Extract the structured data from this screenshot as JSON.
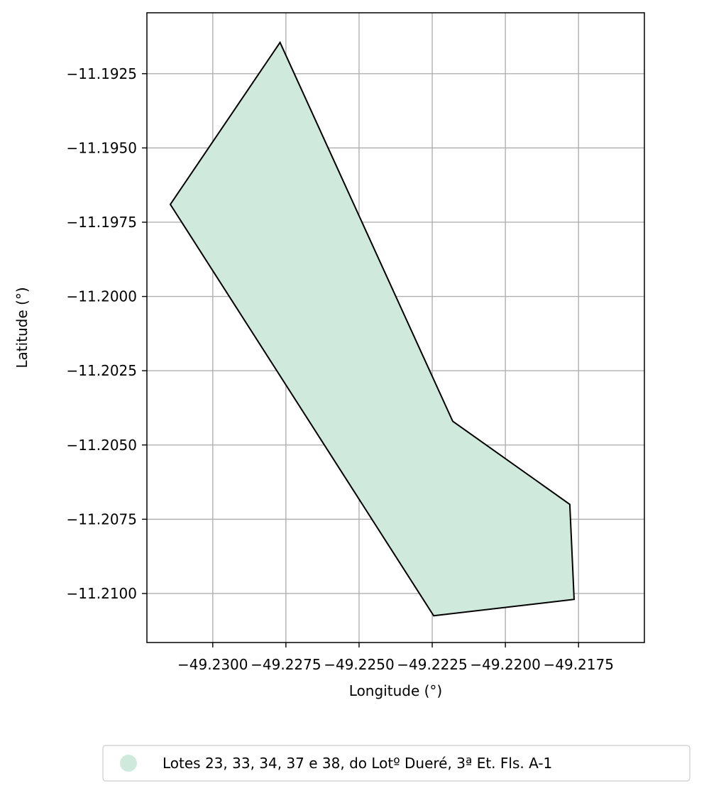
{
  "chart_data": {
    "type": "map-polygon",
    "title": "",
    "xlabel": "Longitude (°)",
    "ylabel": "Latitude (°)",
    "xlim": [
      -49.23225,
      -49.21525
    ],
    "ylim": [
      -11.21165,
      -11.19045
    ],
    "xticks": [
      -49.23,
      -49.2275,
      -49.225,
      -49.2225,
      -49.22,
      -49.2175
    ],
    "xtick_labels": [
      "−49.2300",
      "−49.2275",
      "−49.2250",
      "−49.2225",
      "−49.2200",
      "−49.2175"
    ],
    "yticks": [
      -11.1925,
      -11.195,
      -11.1975,
      -11.2,
      -11.2025,
      -11.205,
      -11.2075,
      -11.21
    ],
    "ytick_labels": [
      "−11.1925",
      "−11.1950",
      "−11.1975",
      "−11.2000",
      "−11.2025",
      "−11.2050",
      "−11.2075",
      "−11.2100"
    ],
    "grid": true,
    "legend_position": "bottom-right, below plot",
    "series": [
      {
        "name": "Lotes 23, 33, 34, 37 e 38, do Lotº Dueré, 3ª Et. Fls. A-1",
        "fill_color": "#cfeadd",
        "edge_color": "#000000",
        "polygon": [
          [
            -49.2277,
            -11.19145
          ],
          [
            -49.2218,
            -11.2042
          ],
          [
            -49.2178,
            -11.207
          ],
          [
            -49.21765,
            -11.2102
          ],
          [
            -49.22245,
            -11.21075
          ],
          [
            -49.23145,
            -11.1969
          ]
        ]
      }
    ]
  }
}
